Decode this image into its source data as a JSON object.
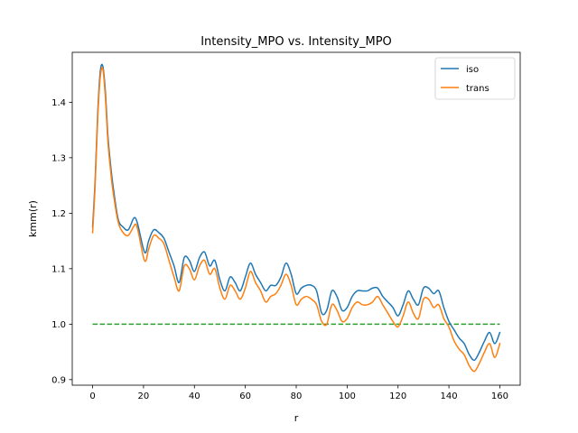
{
  "chart_data": {
    "type": "line",
    "title": "Intensity_MPO vs. Intensity_MPO",
    "xlabel": "r",
    "ylabel": "kmm(r)",
    "xlim": [
      -8,
      168
    ],
    "ylim": [
      0.89,
      1.49
    ],
    "xticks": [
      0,
      20,
      40,
      60,
      80,
      100,
      120,
      140,
      160
    ],
    "yticks": [
      0.9,
      1.0,
      1.1,
      1.2,
      1.3,
      1.4
    ],
    "ytick_labels": [
      "0.9",
      "1.0",
      "1.1",
      "1.2",
      "1.3",
      "1.4"
    ],
    "grid": false,
    "legend_position": "top-right",
    "x": [
      0,
      1,
      2,
      3,
      4,
      5,
      6,
      7,
      8,
      10,
      12,
      14,
      16,
      17,
      18,
      20,
      21,
      22,
      24,
      26,
      28,
      30,
      32,
      34,
      36,
      38,
      40,
      42,
      44,
      46,
      48,
      50,
      52,
      54,
      56,
      58,
      60,
      62,
      64,
      66,
      68,
      70,
      72,
      74,
      76,
      78,
      80,
      82,
      84,
      86,
      88,
      90,
      92,
      94,
      96,
      98,
      100,
      102,
      104,
      106,
      108,
      110,
      112,
      114,
      116,
      118,
      120,
      122,
      124,
      126,
      128,
      130,
      132,
      134,
      136,
      138,
      140,
      142,
      144,
      146,
      148,
      150,
      152,
      154,
      156,
      158,
      160
    ],
    "series": [
      {
        "name": "iso",
        "color": "#1f77b4",
        "values": [
          1.175,
          1.26,
          1.38,
          1.455,
          1.465,
          1.42,
          1.34,
          1.29,
          1.25,
          1.19,
          1.175,
          1.17,
          1.19,
          1.19,
          1.175,
          1.135,
          1.13,
          1.15,
          1.17,
          1.165,
          1.155,
          1.13,
          1.105,
          1.075,
          1.12,
          1.115,
          1.095,
          1.12,
          1.13,
          1.105,
          1.115,
          1.08,
          1.06,
          1.085,
          1.075,
          1.06,
          1.085,
          1.11,
          1.09,
          1.075,
          1.06,
          1.07,
          1.07,
          1.085,
          1.11,
          1.09,
          1.055,
          1.065,
          1.07,
          1.07,
          1.06,
          1.02,
          1.025,
          1.06,
          1.05,
          1.025,
          1.03,
          1.05,
          1.06,
          1.06,
          1.06,
          1.065,
          1.065,
          1.05,
          1.04,
          1.03,
          1.015,
          1.035,
          1.06,
          1.045,
          1.035,
          1.065,
          1.065,
          1.055,
          1.06,
          1.03,
          1.005,
          0.99,
          0.975,
          0.965,
          0.945,
          0.935,
          0.95,
          0.97,
          0.985,
          0.965,
          0.985
        ]
      },
      {
        "name": "trans",
        "color": "#ff7f0e",
        "values": [
          1.165,
          1.25,
          1.37,
          1.445,
          1.46,
          1.41,
          1.33,
          1.28,
          1.24,
          1.185,
          1.165,
          1.16,
          1.175,
          1.18,
          1.165,
          1.12,
          1.115,
          1.135,
          1.16,
          1.155,
          1.145,
          1.115,
          1.085,
          1.06,
          1.105,
          1.1,
          1.08,
          1.105,
          1.115,
          1.09,
          1.1,
          1.065,
          1.045,
          1.07,
          1.06,
          1.045,
          1.065,
          1.095,
          1.075,
          1.06,
          1.04,
          1.05,
          1.055,
          1.07,
          1.09,
          1.07,
          1.035,
          1.045,
          1.05,
          1.045,
          1.035,
          1.005,
          1.0,
          1.035,
          1.025,
          1.005,
          1.01,
          1.03,
          1.04,
          1.035,
          1.035,
          1.04,
          1.05,
          1.035,
          1.02,
          1.005,
          0.995,
          1.015,
          1.04,
          1.02,
          1.01,
          1.045,
          1.045,
          1.03,
          1.035,
          1.01,
          0.995,
          0.97,
          0.955,
          0.945,
          0.925,
          0.915,
          0.93,
          0.95,
          0.965,
          0.94,
          0.965
        ]
      }
    ],
    "reference_line": {
      "y": 1.0,
      "x_start": 0,
      "x_end": 160,
      "color": "#2ca02c",
      "style": "dashed"
    }
  }
}
